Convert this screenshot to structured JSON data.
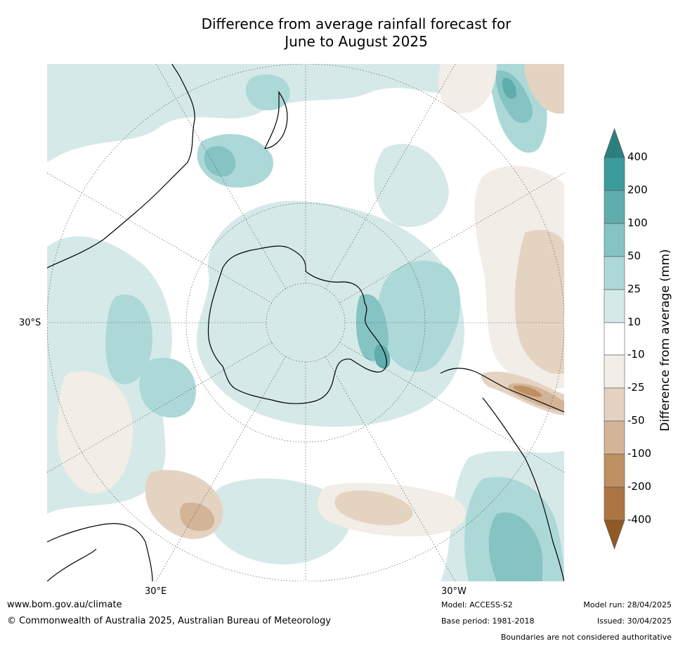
{
  "title": {
    "line1": "Difference from average rainfall forecast for",
    "line2": "June to August 2025"
  },
  "map": {
    "projection": "south-polar-stereographic",
    "tick_labels": {
      "lat": "30°S",
      "lon_east": "30°E",
      "lon_west": "30°W"
    }
  },
  "colorbar": {
    "title": "Difference from average (mm)",
    "labels": [
      "400",
      "200",
      "100",
      "50",
      "25",
      "10",
      "-10",
      "-25",
      "-50",
      "-100",
      "-200",
      "-400"
    ],
    "colors": {
      "over": "#2b7f7e",
      "200_400": "#3b9c9b",
      "100_200": "#5fadad",
      "50_100": "#86c3c3",
      "25_50": "#add8d8",
      "10_25": "#d5e9e8",
      "-10_10": "#ffffff",
      "-25_-10": "#f2ede6",
      "-50_-25": "#e5d3c2",
      "-100_-50": "#d3b497",
      "-200_-100": "#bf9062",
      "-400_-200": "#ad7542",
      "under": "#8f5a23"
    }
  },
  "footer": {
    "website": "www.bom.gov.au/climate",
    "copyright": "© Commonwealth of Australia 2025, Australian Bureau of Meteorology",
    "model": "Model: ACCESS-S2",
    "base_period": "Base period: 1981-2018",
    "model_run": "Model run: 28/04/2025",
    "issued": "Issued: 30/04/2025",
    "disclaimer": "Boundaries are not considered authoritative"
  }
}
